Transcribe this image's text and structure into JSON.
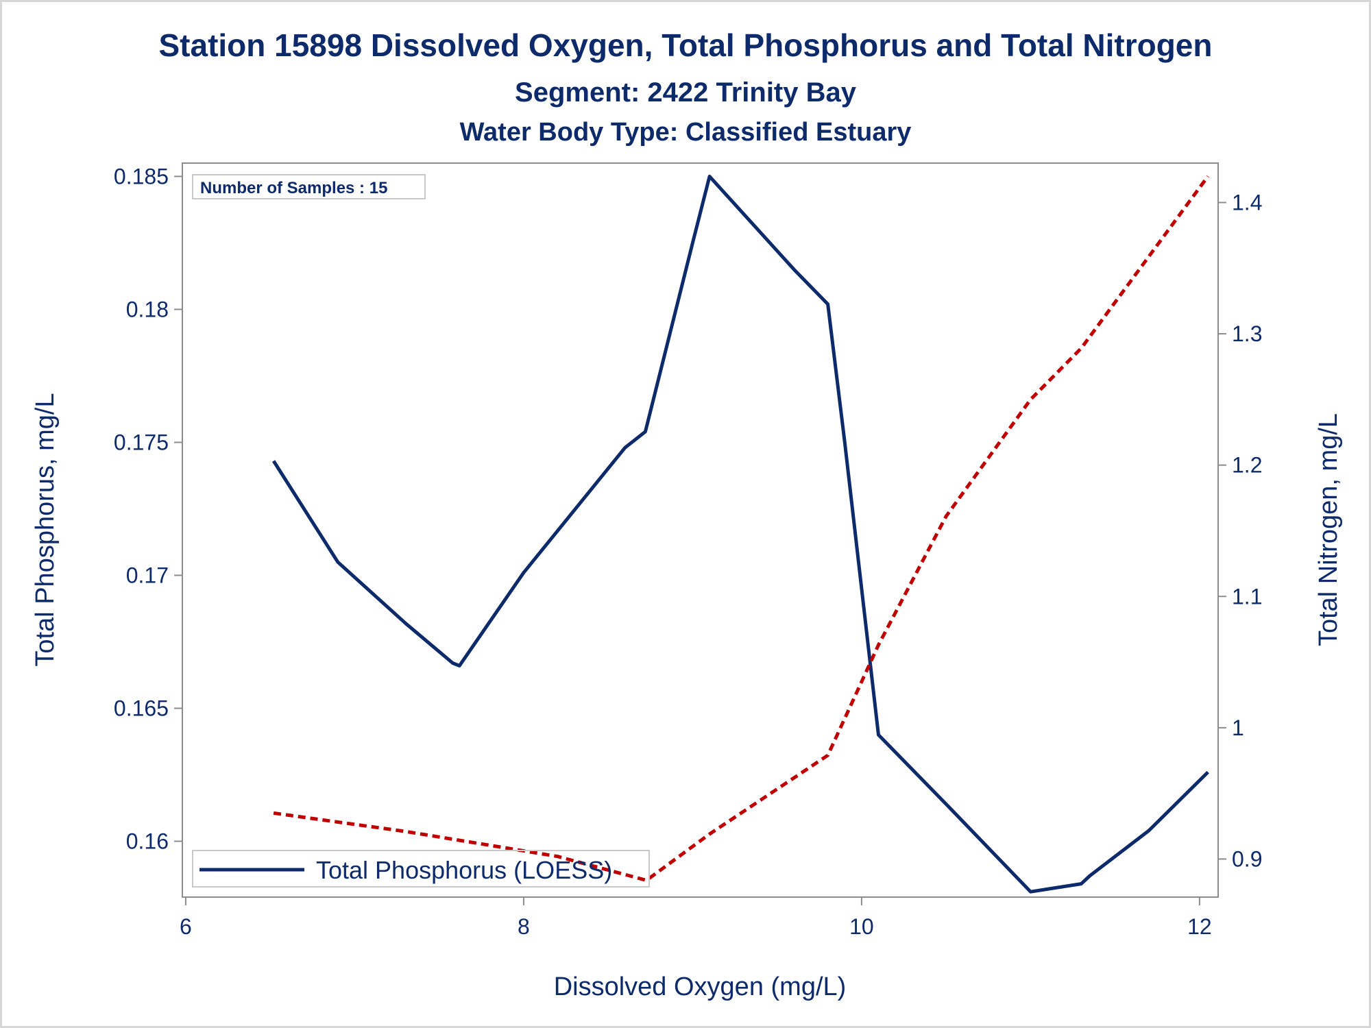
{
  "chart_data": {
    "type": "line",
    "title": "Station 15898  Dissolved Oxygen, Total Phosphorus and Total Nitrogen",
    "subtitle": "Segment: 2422  Trinity Bay",
    "subtitle2": "Water Body Type: Classified Estuary",
    "xlabel": "Dissolved Oxygen (mg/L)",
    "ylabel": "Total Phosphorus, mg/L",
    "y2label": "Total Nitrogen, mg/L",
    "xlim": [
      5.98,
      12.11
    ],
    "ylim": [
      0.1579,
      0.1855
    ],
    "y2lim": [
      0.871,
      1.43
    ],
    "xticks": [
      "6",
      "8",
      "10",
      "12"
    ],
    "xtick_values": [
      6,
      8,
      10,
      12
    ],
    "yticks": [
      "0.16",
      "0.165",
      "0.17",
      "0.175",
      "0.18",
      "0.185"
    ],
    "ytick_values": [
      0.16,
      0.165,
      0.17,
      0.175,
      0.18,
      0.185
    ],
    "y2ticks": [
      "0.9",
      "1",
      "1.1",
      "1.2",
      "1.3",
      "1.4"
    ],
    "y2tick_values": [
      0.9,
      1.0,
      1.1,
      1.2,
      1.3,
      1.4
    ],
    "grid": false,
    "annotation": "Number of Samples : 15",
    "legend_position": "bottom-left",
    "series": [
      {
        "name": "Total Phosphorus (LOESS)",
        "axis": "left",
        "color": "#0d2a6b",
        "style": "solid",
        "x": [
          6.52,
          6.9,
          7.3,
          7.58,
          7.62,
          8.0,
          8.6,
          8.72,
          9.0,
          9.1,
          9.6,
          9.8,
          9.9,
          10.1,
          10.5,
          11.0,
          11.3,
          11.35,
          11.7,
          12.05
        ],
        "values": [
          0.1743,
          0.1705,
          0.1682,
          0.1667,
          0.1666,
          0.1701,
          0.1748,
          0.1754,
          0.1825,
          0.185,
          0.1815,
          0.1802,
          0.175,
          0.164,
          0.1614,
          0.1581,
          0.1584,
          0.1587,
          0.1604,
          0.1626
        ]
      },
      {
        "name": "",
        "axis": "right",
        "color": "#c00000",
        "style": "dashed",
        "x": [
          6.52,
          7.3,
          8.2,
          8.72,
          8.75,
          9.1,
          9.8,
          10.1,
          10.5,
          11.0,
          11.3,
          12.05
        ],
        "values": [
          0.935,
          0.921,
          0.902,
          0.884,
          0.886,
          0.919,
          0.979,
          1.063,
          1.161,
          1.25,
          1.289,
          1.42
        ]
      }
    ]
  }
}
